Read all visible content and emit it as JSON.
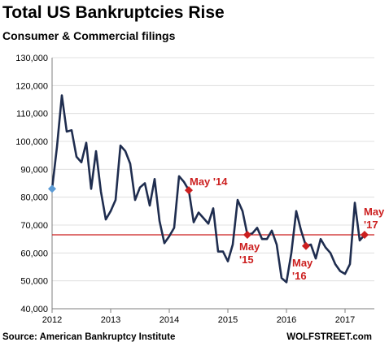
{
  "title": "Total US Bankruptcies Rise",
  "subtitle": "Consumer & Commercial filings",
  "source": "Source: American Bankruptcy Institute",
  "brand": "WOLFSTREET.com",
  "colors": {
    "line": "#1f2d4f",
    "accent": "#cc1f1f",
    "first_point": "#5b9bd5",
    "axis": "#7f7f7f"
  },
  "chart_data": {
    "type": "line",
    "ylim": [
      40000,
      130000
    ],
    "yticks": [
      40000,
      50000,
      60000,
      70000,
      80000,
      90000,
      100000,
      110000,
      120000,
      130000
    ],
    "ytick_labels": [
      "40,000",
      "50,000",
      "60,000",
      "70,000",
      "80,000",
      "90,000",
      "100,000",
      "110,000",
      "120,000",
      "130,000"
    ],
    "xlim": [
      2012,
      2017.5
    ],
    "xticks": [
      2012,
      2013,
      2014,
      2015,
      2016,
      2017
    ],
    "xtick_labels": [
      "2012",
      "2013",
      "2014",
      "2015",
      "2016",
      "2017"
    ],
    "reference_line": 66500,
    "series": [
      {
        "x": [
          2012.0,
          2012.083,
          2012.167,
          2012.25,
          2012.333,
          2012.417,
          2012.5,
          2012.583,
          2012.667,
          2012.75,
          2012.833,
          2012.917,
          2013.0,
          2013.083,
          2013.167,
          2013.25,
          2013.333,
          2013.417,
          2013.5,
          2013.583,
          2013.667,
          2013.75,
          2013.833,
          2013.917,
          2014.0,
          2014.083,
          2014.167,
          2014.25,
          2014.333,
          2014.417,
          2014.5,
          2014.583,
          2014.667,
          2014.75,
          2014.833,
          2014.917,
          2015.0,
          2015.083,
          2015.167,
          2015.25,
          2015.333,
          2015.417,
          2015.5,
          2015.583,
          2015.667,
          2015.75,
          2015.833,
          2015.917,
          2016.0,
          2016.083,
          2016.167,
          2016.25,
          2016.333,
          2016.417,
          2016.5,
          2016.583,
          2016.667,
          2016.75,
          2016.833,
          2016.917,
          2017.0,
          2017.083,
          2017.167,
          2017.25,
          2017.333
        ],
        "values": [
          83000,
          98000,
          116500,
          103500,
          104000,
          94500,
          92500,
          99500,
          83000,
          96500,
          82000,
          72000,
          75000,
          79000,
          98500,
          96500,
          92000,
          79000,
          83500,
          85000,
          77000,
          86500,
          71500,
          63500,
          66000,
          69000,
          87500,
          85500,
          82500,
          71000,
          74500,
          72500,
          70500,
          76000,
          60500,
          60500,
          57000,
          63000,
          79000,
          75000,
          66500,
          67000,
          69000,
          65000,
          65000,
          68000,
          63000,
          51000,
          49500,
          60000,
          75000,
          68000,
          62500,
          63000,
          58000,
          65000,
          62000,
          60000,
          56000,
          53500,
          52500,
          56000,
          78000,
          64500,
          66500
        ]
      }
    ],
    "markers": [
      {
        "x": 2012.0,
        "y": 83000,
        "color": "#5b9bd5"
      },
      {
        "x": 2014.333,
        "y": 82500,
        "color": "#cc1f1f"
      },
      {
        "x": 2015.333,
        "y": 66500,
        "color": "#cc1f1f"
      },
      {
        "x": 2016.333,
        "y": 62500,
        "color": "#cc1f1f"
      },
      {
        "x": 2017.333,
        "y": 66500,
        "color": "#cc1f1f"
      }
    ],
    "annotations": [
      {
        "lines": [
          "May '14"
        ]
      },
      {
        "lines": [
          "May",
          "'15"
        ]
      },
      {
        "lines": [
          "May",
          "'16"
        ]
      },
      {
        "lines": [
          "May",
          "'17"
        ]
      }
    ]
  }
}
